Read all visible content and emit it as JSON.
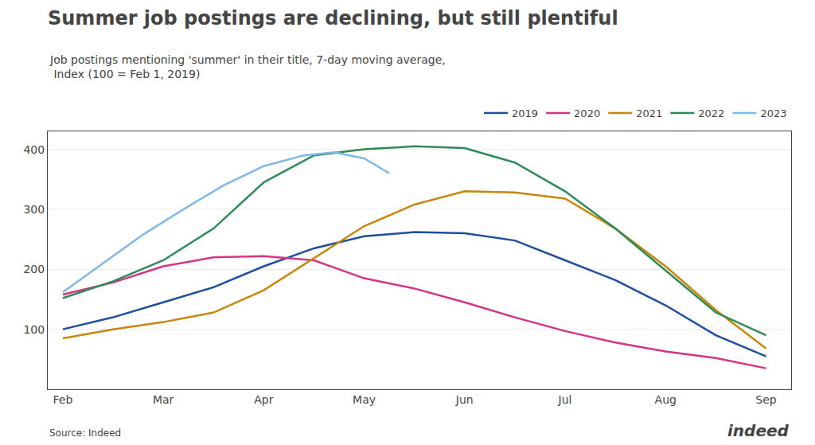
{
  "chart_data": {
    "type": "line",
    "title": "Summer job postings are declining, but still plentiful",
    "subtitle": "Job postings mentioning 'summer' in their title, 7-day moving average,\n Index (100 = Feb 1, 2019)",
    "annotations": [
      "Source: Indeed",
      "indeed"
    ],
    "xlim": [
      -0.15,
      7.25
    ],
    "xticks": [
      {
        "value": 0,
        "label": "Feb"
      },
      {
        "value": 1,
        "label": "Mar"
      },
      {
        "value": 2,
        "label": "Apr"
      },
      {
        "value": 3,
        "label": "May"
      },
      {
        "value": 4,
        "label": "Jun"
      },
      {
        "value": 5,
        "label": "Jul"
      },
      {
        "value": 6,
        "label": "Aug"
      },
      {
        "value": 7,
        "label": "Sep"
      }
    ],
    "ylim": [
      0,
      430
    ],
    "yticks": [
      100,
      200,
      300,
      400
    ],
    "grid": "y",
    "legend": "upper right",
    "series": [
      {
        "name": "2019",
        "color": "#1f4e9e",
        "x": [
          0,
          0.5,
          1,
          1.5,
          2,
          2.5,
          3,
          3.5,
          4,
          4.5,
          5,
          5.5,
          6,
          6.5,
          7
        ],
        "values": [
          100,
          120,
          145,
          170,
          205,
          235,
          255,
          262,
          260,
          248,
          215,
          182,
          140,
          90,
          55
        ]
      },
      {
        "name": "2020",
        "color": "#d63384",
        "x": [
          0,
          0.5,
          1,
          1.5,
          2,
          2.5,
          3,
          3.5,
          4,
          4.5,
          5,
          5.5,
          6,
          6.5,
          7
        ],
        "values": [
          158,
          178,
          205,
          220,
          222,
          215,
          185,
          168,
          145,
          120,
          97,
          78,
          63,
          52,
          35
        ]
      },
      {
        "name": "2021",
        "color": "#c8860a",
        "x": [
          0,
          0.5,
          1,
          1.5,
          2,
          2.5,
          3,
          3.5,
          4,
          4.5,
          5,
          5.5,
          6,
          6.5,
          7
        ],
        "values": [
          85,
          100,
          112,
          128,
          165,
          218,
          272,
          308,
          330,
          328,
          318,
          268,
          205,
          132,
          68
        ]
      },
      {
        "name": "2022",
        "color": "#2e8b57",
        "x": [
          0,
          0.5,
          1,
          1.5,
          2,
          2.5,
          3,
          3.5,
          4,
          4.5,
          5,
          5.5,
          6,
          6.5,
          7
        ],
        "values": [
          152,
          180,
          215,
          268,
          345,
          390,
          400,
          405,
          402,
          378,
          330,
          268,
          198,
          128,
          90
        ]
      },
      {
        "name": "2023",
        "color": "#7db8e8",
        "x": [
          0,
          0.4,
          0.8,
          1.2,
          1.6,
          2.0,
          2.4,
          2.7,
          3.0,
          3.25
        ],
        "values": [
          162,
          210,
          258,
          300,
          340,
          372,
          390,
          395,
          385,
          360
        ]
      }
    ]
  }
}
